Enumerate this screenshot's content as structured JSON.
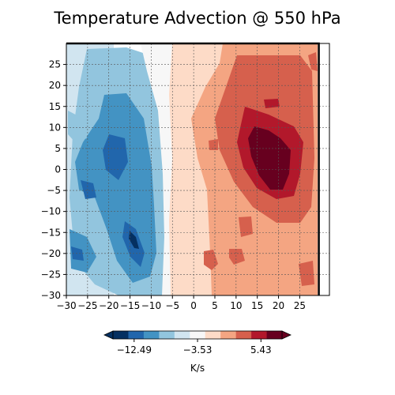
{
  "chart_data": {
    "type": "heatmap",
    "title": "Temperature Advection @ 550 hPa",
    "xlim": [
      -30,
      32
    ],
    "ylim": [
      -30,
      30
    ],
    "xticks": [
      -30,
      -25,
      -20,
      -15,
      -10,
      -5,
      0,
      5,
      10,
      15,
      20,
      25
    ],
    "yticks": [
      -30,
      -25,
      -20,
      -15,
      -10,
      -5,
      0,
      5,
      10,
      15,
      20,
      25
    ],
    "grid": true,
    "grid_style": "dashed",
    "boundary_box": {
      "x_min": -30,
      "x_max": 29.5,
      "y_min": -30,
      "y_max": 30
    },
    "colorbar": {
      "label": "K/s",
      "orientation": "horizontal",
      "extend": "both",
      "ticks": [
        -12.49,
        -3.53,
        5.43
      ],
      "tick_labels": [
        "−12.49",
        "−3.53",
        "5.43"
      ],
      "levels": [
        -15.48,
        -13.99,
        -12.49,
        -10.99,
        -9.5,
        -8.01,
        -6.52,
        -5.02,
        -3.53,
        -2.04,
        -0.54,
        0.95,
        2.44,
        3.94,
        5.43,
        6.92,
        8.41
      ],
      "colors": [
        "#053061",
        "#2166ac",
        "#4393c3",
        "#92c5de",
        "#d1e5f0",
        "#f7f7f7",
        "#fddbc7",
        "#f4a582",
        "#d6604d",
        "#b2182b",
        "#67001f"
      ]
    },
    "field_bands": [
      {
        "x_from": -30,
        "x_to": -19,
        "color": "#d1e5f0",
        "desc": "light blue, patchy"
      },
      {
        "x_from": -22,
        "x_to": -9,
        "color": "#4393c3",
        "desc": "blue core with dark blue patches"
      },
      {
        "x_from": -9,
        "x_to": -5,
        "color": "#f7f7f7",
        "desc": "near neutral"
      },
      {
        "x_from": -5,
        "x_to": 7,
        "color": "#fddbc7",
        "desc": "light red"
      },
      {
        "x_from": 7,
        "x_to": 29,
        "color": "#f4a582",
        "desc": "orange red"
      },
      {
        "x_from": 13,
        "x_to": 26,
        "color": "#b2182b",
        "desc": "dark red max near (18, 8)"
      }
    ]
  }
}
